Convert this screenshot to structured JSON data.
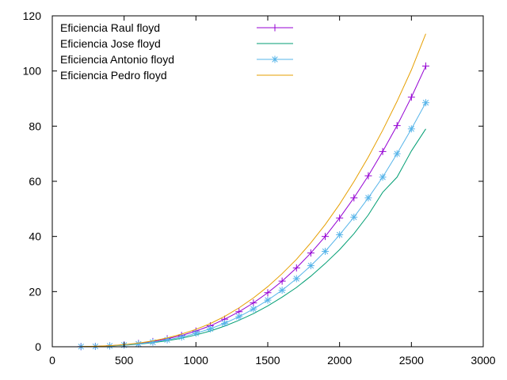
{
  "chart_data": {
    "type": "line",
    "title": "",
    "xlabel": "",
    "ylabel": "",
    "xlim": [
      0,
      3000
    ],
    "ylim": [
      0,
      120
    ],
    "xticks": [
      0,
      500,
      1000,
      1500,
      2000,
      2500,
      3000
    ],
    "yticks": [
      0,
      20,
      40,
      60,
      80,
      100,
      120
    ],
    "grid": false,
    "legend_position": "top-left",
    "x": [
      200,
      300,
      400,
      500,
      600,
      700,
      800,
      900,
      1000,
      1100,
      1200,
      1300,
      1400,
      1500,
      1600,
      1700,
      1800,
      1900,
      2000,
      2100,
      2200,
      2300,
      2400,
      2500,
      2600
    ],
    "series": [
      {
        "name": "Eficiencia Raul floyd",
        "color": "#9400d3",
        "marker": "plus",
        "values": [
          0.05,
          0.15,
          0.35,
          0.7,
          1.2,
          1.9,
          2.9,
          4.1,
          5.7,
          7.6,
          10.0,
          12.7,
          15.9,
          19.6,
          23.8,
          28.6,
          34.0,
          40.0,
          46.7,
          54.0,
          62.0,
          70.8,
          80.2,
          90.5,
          101.8
        ]
      },
      {
        "name": "Eficiencia Jose floyd",
        "color": "#009e73",
        "marker": "none",
        "values": [
          0.04,
          0.12,
          0.27,
          0.53,
          0.92,
          1.46,
          2.2,
          3.1,
          4.3,
          5.7,
          7.5,
          9.6,
          12.0,
          14.8,
          18.0,
          21.5,
          25.6,
          30.2,
          35.2,
          41.0,
          47.8,
          56.0,
          61.5,
          71.0,
          79.0
        ]
      },
      {
        "name": "Eficiencia Antonio floyd",
        "color": "#56b4e9",
        "marker": "star",
        "values": [
          0.05,
          0.13,
          0.3,
          0.6,
          1.05,
          1.65,
          2.5,
          3.5,
          4.9,
          6.5,
          8.5,
          10.9,
          13.7,
          16.9,
          20.5,
          24.7,
          29.4,
          34.6,
          40.6,
          47.0,
          54.0,
          61.5,
          70.0,
          79.0,
          88.5
        ]
      },
      {
        "name": "Eficiencia Pedro floyd",
        "color": "#e69f00",
        "marker": "none",
        "values": [
          0.06,
          0.17,
          0.39,
          0.77,
          1.33,
          2.11,
          3.2,
          4.6,
          6.3,
          8.4,
          11.0,
          14.1,
          17.7,
          21.8,
          26.5,
          31.7,
          37.7,
          44.3,
          51.7,
          59.9,
          68.8,
          78.5,
          89.0,
          100.4,
          113.5
        ]
      }
    ]
  }
}
